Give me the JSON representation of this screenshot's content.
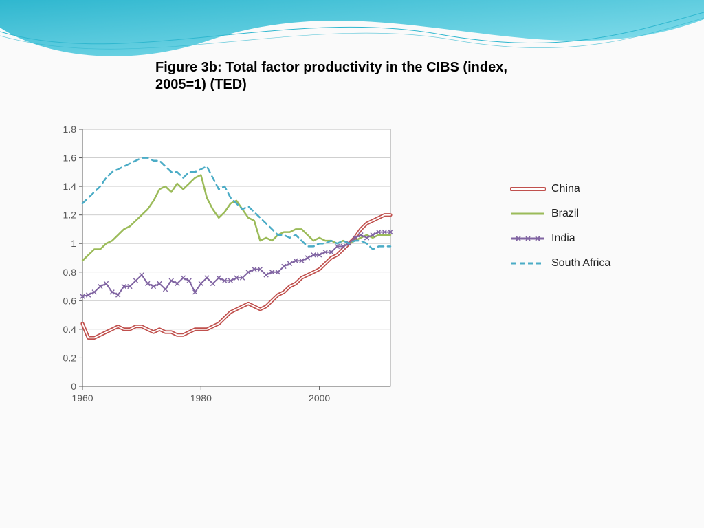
{
  "title": "Figure 3b: Total factor productivity in the CIBS (index, 2005=1) (TED)",
  "chart": {
    "type": "line",
    "background_color": "#ffffff",
    "plot_border_color": "#999999",
    "plot_border_width": 1,
    "grid_color": "#c8c8c8",
    "axis_label_color": "#595959",
    "axis_label_fontsize": 14,
    "xlim": [
      1960,
      2012
    ],
    "x_ticks": [
      1960,
      1980,
      2000
    ],
    "ylim": [
      0,
      1.8
    ],
    "y_ticks": [
      0,
      0.2,
      0.4,
      0.6,
      0.8,
      1.0,
      1.2,
      1.4,
      1.6,
      1.8
    ],
    "x_years": [
      1960,
      1961,
      1962,
      1963,
      1964,
      1965,
      1966,
      1967,
      1968,
      1969,
      1970,
      1971,
      1972,
      1973,
      1974,
      1975,
      1976,
      1977,
      1978,
      1979,
      1980,
      1981,
      1982,
      1983,
      1984,
      1985,
      1986,
      1987,
      1988,
      1989,
      1990,
      1991,
      1992,
      1993,
      1994,
      1995,
      1996,
      1997,
      1998,
      1999,
      2000,
      2001,
      2002,
      2003,
      2004,
      2005,
      2006,
      2007,
      2008,
      2009,
      2010,
      2011,
      2012
    ],
    "series": [
      {
        "name": "China",
        "label": "China",
        "color": "#c0504d",
        "style": "double",
        "line_width": 2,
        "marker": "none",
        "dash": "solid",
        "values": [
          0.44,
          0.34,
          0.34,
          0.36,
          0.38,
          0.4,
          0.42,
          0.4,
          0.4,
          0.42,
          0.42,
          0.4,
          0.38,
          0.4,
          0.38,
          0.38,
          0.36,
          0.36,
          0.38,
          0.4,
          0.4,
          0.4,
          0.42,
          0.44,
          0.48,
          0.52,
          0.54,
          0.56,
          0.58,
          0.56,
          0.54,
          0.56,
          0.6,
          0.64,
          0.66,
          0.7,
          0.72,
          0.76,
          0.78,
          0.8,
          0.82,
          0.86,
          0.9,
          0.92,
          0.96,
          1.0,
          1.04,
          1.1,
          1.14,
          1.16,
          1.18,
          1.2,
          1.2
        ]
      },
      {
        "name": "Brazil",
        "label": "Brazil",
        "color": "#9bbb59",
        "style": "solid",
        "line_width": 2.5,
        "marker": "none",
        "dash": "solid",
        "values": [
          0.88,
          0.92,
          0.96,
          0.96,
          1.0,
          1.02,
          1.06,
          1.1,
          1.12,
          1.16,
          1.2,
          1.24,
          1.3,
          1.38,
          1.4,
          1.36,
          1.42,
          1.38,
          1.42,
          1.46,
          1.48,
          1.32,
          1.24,
          1.18,
          1.22,
          1.28,
          1.3,
          1.24,
          1.18,
          1.16,
          1.02,
          1.04,
          1.02,
          1.06,
          1.08,
          1.08,
          1.1,
          1.1,
          1.06,
          1.02,
          1.04,
          1.02,
          1.02,
          1.0,
          1.02,
          1.0,
          1.02,
          1.04,
          1.06,
          1.04,
          1.06,
          1.06,
          1.06
        ]
      },
      {
        "name": "India",
        "label": "India",
        "color": "#8064a2",
        "style": "solid",
        "line_width": 2,
        "marker": "x",
        "dash": "solid",
        "values": [
          0.63,
          0.64,
          0.66,
          0.7,
          0.72,
          0.66,
          0.64,
          0.7,
          0.7,
          0.74,
          0.78,
          0.72,
          0.7,
          0.72,
          0.68,
          0.74,
          0.72,
          0.76,
          0.74,
          0.66,
          0.72,
          0.76,
          0.72,
          0.76,
          0.74,
          0.74,
          0.76,
          0.76,
          0.8,
          0.82,
          0.82,
          0.78,
          0.8,
          0.8,
          0.84,
          0.86,
          0.88,
          0.88,
          0.9,
          0.92,
          0.92,
          0.94,
          0.94,
          0.98,
          0.98,
          1.0,
          1.04,
          1.06,
          1.04,
          1.06,
          1.08,
          1.08,
          1.08
        ]
      },
      {
        "name": "South Africa",
        "label": "South Africa",
        "color": "#4bacc6",
        "style": "solid",
        "line_width": 2.5,
        "marker": "none",
        "dash": "dashed",
        "values": [
          1.28,
          1.32,
          1.36,
          1.4,
          1.46,
          1.5,
          1.52,
          1.54,
          1.56,
          1.58,
          1.6,
          1.6,
          1.58,
          1.58,
          1.54,
          1.5,
          1.5,
          1.46,
          1.5,
          1.5,
          1.52,
          1.54,
          1.46,
          1.38,
          1.4,
          1.32,
          1.28,
          1.24,
          1.26,
          1.22,
          1.18,
          1.14,
          1.1,
          1.06,
          1.06,
          1.04,
          1.06,
          1.02,
          0.98,
          0.98,
          1.0,
          1.0,
          1.02,
          1.0,
          1.02,
          1.0,
          1.02,
          1.02,
          1.0,
          0.96,
          0.98,
          0.98,
          0.98
        ]
      }
    ]
  },
  "legend": {
    "fontsize": 16,
    "text_color": "#222222",
    "items": [
      {
        "label": "China",
        "series": "China"
      },
      {
        "label": "Brazil",
        "series": "Brazil"
      },
      {
        "label": "India",
        "series": "India"
      },
      {
        "label": "South Africa",
        "series": "South Africa"
      }
    ]
  },
  "decorative_wave": {
    "gradient_start": "#2fb7cf",
    "gradient_end": "#8fe2ef",
    "thin_line_color": "#2fb7cf"
  }
}
